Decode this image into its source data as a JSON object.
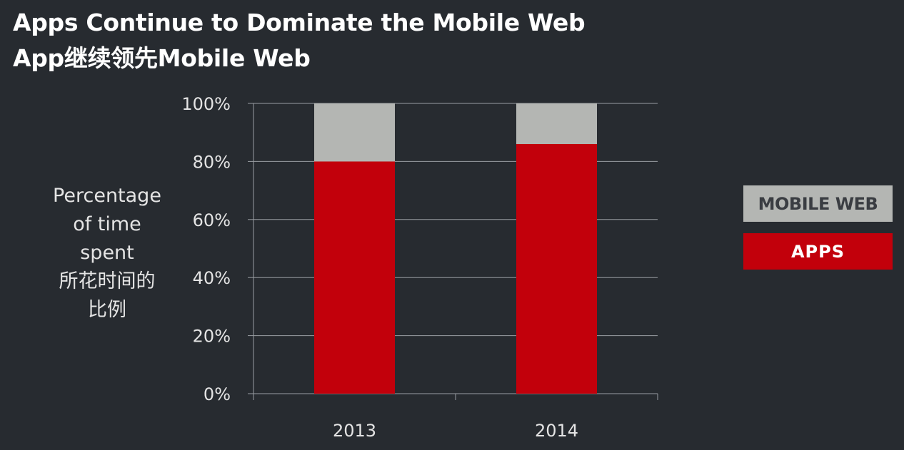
{
  "title": {
    "line1": "Apps Continue to Dominate the Mobile Web",
    "line2": "App继续领先Mobile Web"
  },
  "colors": {
    "background": "#272b30",
    "apps": "#c2000b",
    "mobile_web": "#b4b6b3",
    "gridline": "#9a9ea3"
  },
  "chart_data": {
    "type": "bar",
    "stacked": true,
    "categories": [
      "2013",
      "2014"
    ],
    "series": [
      {
        "name": "APPS",
        "values": [
          80,
          86
        ]
      },
      {
        "name": "MOBILE WEB",
        "values": [
          20,
          14
        ]
      }
    ],
    "ylim": [
      0,
      100
    ],
    "yticks": [
      "0%",
      "20%",
      "40%",
      "60%",
      "80%",
      "100%"
    ],
    "ylabel_lines": [
      "Percentage",
      "of time",
      "spent",
      "所花时间的",
      "比例"
    ],
    "xlabel": "",
    "grid": true,
    "legend": "right"
  }
}
